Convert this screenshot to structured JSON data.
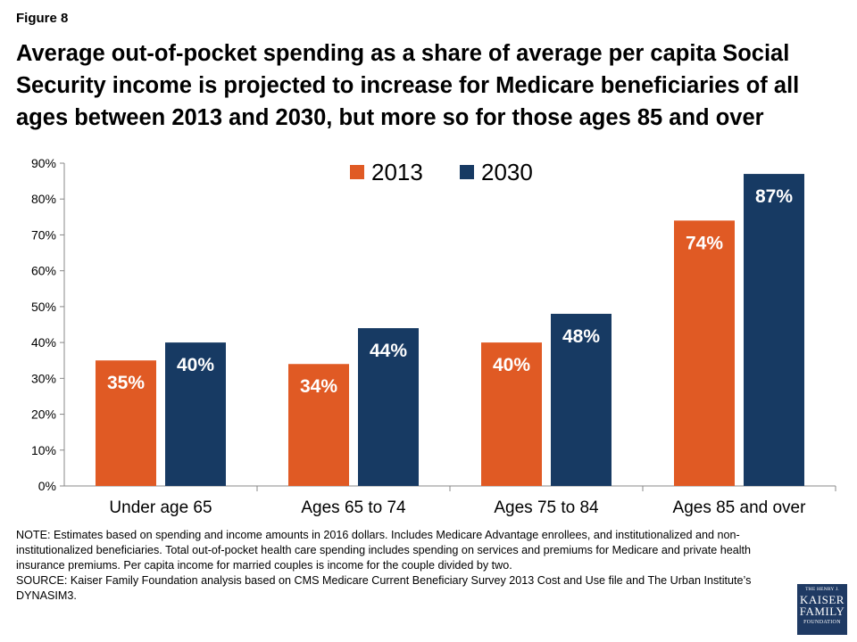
{
  "figure_label": "Figure 8",
  "title": "Average out-of-pocket spending as a share of average per capita Social Security income is projected to increase for Medicare beneficiaries of all ages between 2013 and 2030, but more so for those ages 85 and over",
  "note": "NOTE: Estimates based on spending and income amounts in 2016 dollars. Includes Medicare Advantage enrollees, and institutionalized and non-institutionalized beneficiaries. Total out-of-pocket health care spending includes spending on services and premiums for Medicare and private health insurance premiums. Per capita income for married couples is income for the couple divided by two.",
  "source": "SOURCE: Kaiser Family Foundation analysis based on CMS Medicare Current Beneficiary Survey 2013 Cost and Use file and The Urban Institute’s DYNASIM3.",
  "logo": {
    "line1": "THE HENRY J.",
    "line2": "KAISER",
    "line3": "FAMILY",
    "line4": "FOUNDATION"
  },
  "colors": {
    "series_2013": "#e05a24",
    "series_2030": "#173a63",
    "axis": "#888888"
  },
  "chart_data": {
    "type": "bar",
    "categories": [
      "Under age 65",
      "Ages 65 to 74",
      "Ages 75 to 84",
      "Ages 85 and over"
    ],
    "series": [
      {
        "name": "2013",
        "values": [
          35,
          34,
          40,
          74
        ],
        "labels": [
          "35%",
          "34%",
          "40%",
          "74%"
        ]
      },
      {
        "name": "2030",
        "values": [
          40,
          44,
          48,
          87
        ],
        "labels": [
          "40%",
          "44%",
          "48%",
          "87%"
        ]
      }
    ],
    "ylim": [
      0,
      90
    ],
    "yticks": [
      0,
      10,
      20,
      30,
      40,
      50,
      60,
      70,
      80,
      90
    ],
    "ytick_labels": [
      "0%",
      "10%",
      "20%",
      "30%",
      "40%",
      "50%",
      "60%",
      "70%",
      "80%",
      "90%"
    ],
    "grid": false,
    "legend": "top-center",
    "xlabel": "",
    "ylabel": ""
  }
}
